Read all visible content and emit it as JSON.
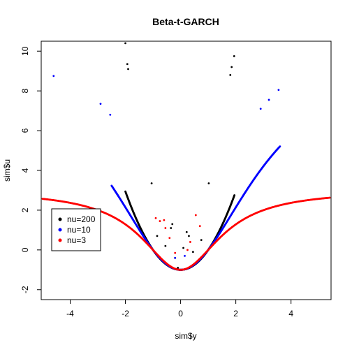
{
  "chart_data": {
    "type": "scatter",
    "title": "Beta-t-GARCH",
    "xlabel": "sim$y",
    "ylabel": "sim$u",
    "xlim": [
      -5.05,
      5.45
    ],
    "ylim": [
      -2.5,
      10.5
    ],
    "xticks": [
      "-4",
      "-2",
      "0",
      "2",
      "4"
    ],
    "yticks": [
      "-2",
      "0",
      "2",
      "4",
      "6",
      "8",
      "10"
    ],
    "grid": false,
    "legend_position": "left, mid-height",
    "series": [
      {
        "name": "nu=200",
        "color": "#000000",
        "nu": 200,
        "curve_xrange": [
          -2.0,
          1.95
        ],
        "points": [
          [
            -2.0,
            10.4
          ],
          [
            -1.93,
            9.35
          ],
          [
            -1.9,
            9.1
          ],
          [
            1.94,
            9.75
          ],
          [
            1.85,
            9.2
          ],
          [
            1.8,
            8.8
          ],
          [
            -0.35,
            1.1
          ],
          [
            0.22,
            0.9
          ],
          [
            -0.3,
            1.3
          ],
          [
            0.1,
            0.1
          ],
          [
            -0.1,
            -0.9
          ],
          [
            -1.05,
            3.35
          ],
          [
            1.02,
            3.35
          ],
          [
            -0.85,
            0.7
          ],
          [
            0.75,
            0.5
          ],
          [
            -0.55,
            0.2
          ],
          [
            0.45,
            -0.1
          ],
          [
            -0.2,
            -0.4
          ],
          [
            0.3,
            0.7
          ]
        ]
      },
      {
        "name": "nu=10",
        "color": "#0000ff",
        "nu": 10,
        "curve_xrange": [
          -2.5,
          3.6
        ],
        "points": [
          [
            -4.6,
            8.75
          ],
          [
            -2.9,
            7.35
          ],
          [
            3.55,
            8.05
          ],
          [
            -2.55,
            6.8
          ],
          [
            3.2,
            7.55
          ],
          [
            2.9,
            7.1
          ],
          [
            -0.2,
            -0.4
          ],
          [
            0.15,
            -0.3
          ]
        ]
      },
      {
        "name": "nu=3",
        "color": "#ff0000",
        "nu": 3,
        "curve_xrange": [
          -5.0,
          5.4
        ],
        "points": [
          [
            -0.75,
            1.45
          ],
          [
            -0.55,
            1.1
          ],
          [
            -0.6,
            1.5
          ],
          [
            0.55,
            1.75
          ],
          [
            0.7,
            1.2
          ],
          [
            -0.4,
            0.6
          ],
          [
            0.35,
            0.4
          ],
          [
            -0.2,
            -0.15
          ],
          [
            0.25,
            0.0
          ],
          [
            -0.9,
            1.6
          ]
        ]
      }
    ]
  }
}
